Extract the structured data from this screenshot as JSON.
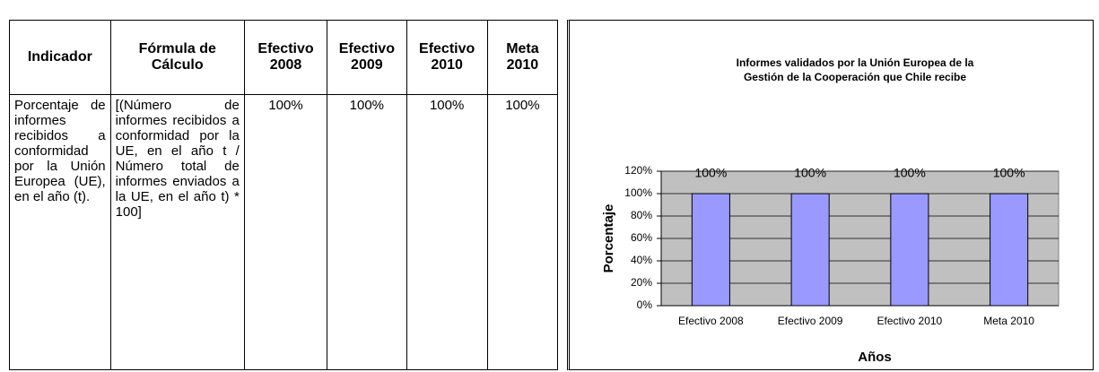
{
  "table": {
    "header": [
      "Indicador",
      "Fórmula de Cálculo",
      "Efectivo 2008",
      "Efectivo 2009",
      "Efectivo 2010",
      "Meta 2010"
    ],
    "rows": [
      [
        "Porcentaje de informes recibidos a conformidad por la Unión Europea (UE), en el año (t).",
        "[(Número de informes recibidos a conformidad por la UE, en el año t / Número total de informes enviados a la UE, en el año t) * 100]",
        "100%",
        "100%",
        "100%",
        "100%"
      ]
    ]
  },
  "chart_data": {
    "type": "bar",
    "title": [
      "Informes validados por la Unión Europea de la",
      "Gestión de la Cooperación que Chile recibe"
    ],
    "categories": [
      "Efectivo 2008",
      "Efectivo 2009",
      "Efectivo 2010",
      "Meta 2010"
    ],
    "values": [
      100,
      100,
      100,
      100
    ],
    "value_labels": [
      "100%",
      "100%",
      "100%",
      "100%"
    ],
    "color": "#9999ff",
    "ylim": [
      0,
      120
    ],
    "yticks": [
      {
        "value": 0,
        "label": "0%"
      },
      {
        "value": 20,
        "label": "20%"
      },
      {
        "value": 40,
        "label": "40%"
      },
      {
        "value": 60,
        "label": "60%"
      },
      {
        "value": 80,
        "label": "80%"
      },
      {
        "value": 100,
        "label": "100%"
      },
      {
        "value": 120,
        "label": "120%"
      }
    ],
    "grid": true,
    "ylabel": "Porcentaje",
    "xlabel": "Años"
  }
}
